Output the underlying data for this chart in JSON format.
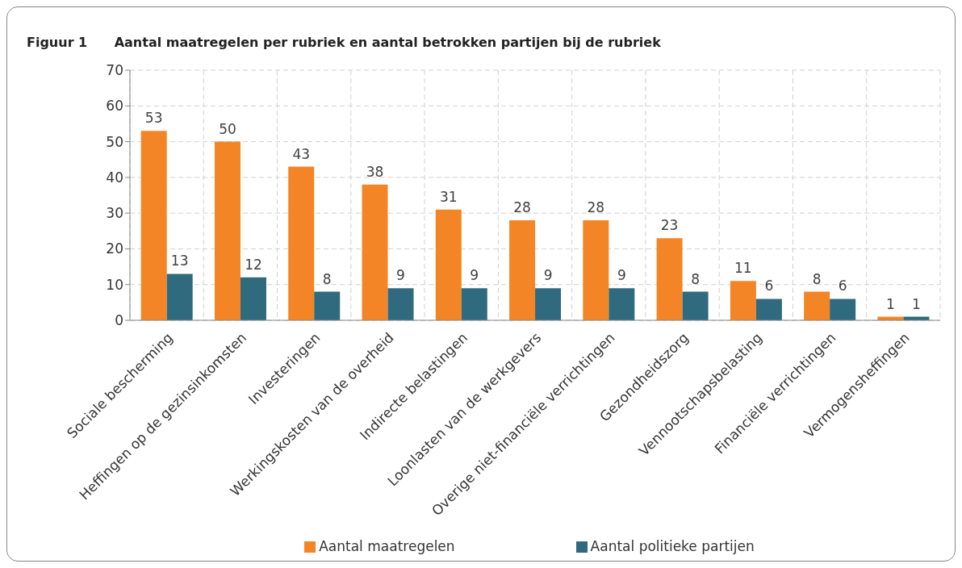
{
  "chart_data": {
    "type": "bar",
    "title": "Figuur 1      Aantal maatregelen per rubriek en aantal betrokken partijen bij de rubriek",
    "categories": [
      "Sociale bescherming",
      "Heffingen op de gezinsinkomsten",
      "Investeringen",
      "Werkingskosten van de overheid",
      "Indirecte belastingen",
      "Loonlasten van de werkgevers",
      "Overige niet-financiële verrichtingen",
      "Gezondheidszorg",
      "Vennootschapsbelasting",
      "Financiële verrichtingen",
      "Vermogensheffingen"
    ],
    "series": [
      {
        "name": "Aantal maatregelen",
        "color": "#f38526",
        "values": [
          53,
          50,
          43,
          38,
          31,
          28,
          28,
          23,
          11,
          8,
          1
        ]
      },
      {
        "name": "Aantal politieke partijen",
        "color": "#2f6a7e",
        "values": [
          13,
          12,
          8,
          9,
          9,
          9,
          9,
          8,
          6,
          6,
          1
        ]
      }
    ],
    "ylim": [
      0,
      70
    ],
    "yticks": [
      0,
      10,
      20,
      30,
      40,
      50,
      60,
      70
    ],
    "grid": true,
    "legend": "bottom",
    "data_labels": true
  }
}
